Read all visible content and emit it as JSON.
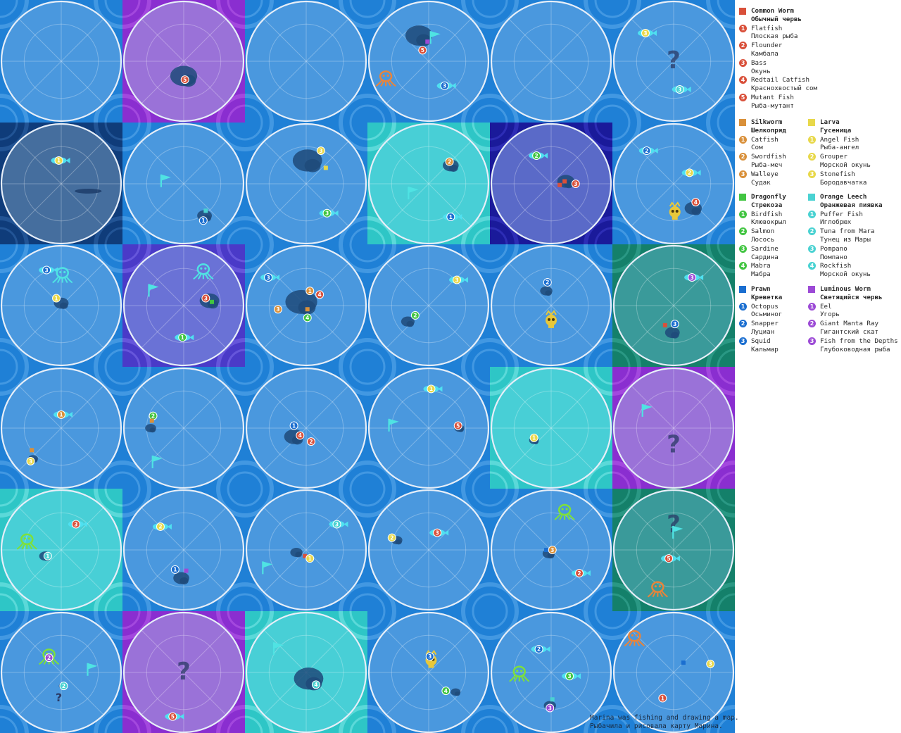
{
  "caption": {
    "line1": "Marina was fishing and drawing a map.",
    "line2": "Рыбачила и рисовала карту Марина."
  },
  "colors": {
    "ocean": "#4a98de",
    "border": "#1f7fd6",
    "common_worm": "#d9503a",
    "silkworm": "#d9903a",
    "larva": "#e8d84a",
    "dragonfly": "#42c542",
    "orange_leech": "#4ad2d2",
    "prawn": "#1a6ed0",
    "luminous_worm": "#9c4ad6",
    "flag": "#4fe3e3",
    "fish_body": "#4fe0f0"
  },
  "legend": [
    {
      "key": "common_worm",
      "name_en": "Common Worm",
      "name_ru": "Обычный червь",
      "color": "#d9503a",
      "fish": [
        [
          "Flatfish",
          "Плоская рыба"
        ],
        [
          "Flounder",
          "Камбала"
        ],
        [
          "Bass",
          "Окунь"
        ],
        [
          "Redtail Catfish",
          "Краснохвостый сом"
        ],
        [
          "Mutant Fish",
          "Рыба-мутант"
        ]
      ]
    },
    {
      "key": "silkworm",
      "name_en": "Silkworm",
      "name_ru": "Шелкопряд",
      "color": "#d9903a",
      "fish": [
        [
          "Catfish",
          "Сом"
        ],
        [
          "Swordfish",
          "Рыба-меч"
        ],
        [
          "Walleye",
          "Судак"
        ]
      ]
    },
    {
      "key": "larva",
      "name_en": "Larva",
      "name_ru": "Гусеница",
      "color": "#e8d84a",
      "fish": [
        [
          "Angel Fish",
          "Рыба-ангел"
        ],
        [
          "Grouper",
          "Морской окунь"
        ],
        [
          "Stonefish",
          "Бородавчатка"
        ]
      ]
    },
    {
      "key": "dragonfly",
      "name_en": "Dragonfly",
      "name_ru": "Стрекоза",
      "color": "#42c542",
      "fish": [
        [
          "Birdfish",
          "Клювокрыл"
        ],
        [
          "Salmon",
          "Лосось"
        ],
        [
          "Sardine",
          "Сардина"
        ],
        [
          "Mabra",
          "Мабра"
        ]
      ]
    },
    {
      "key": "orange_leech",
      "name_en": "Orange Leech",
      "name_ru": "Оранжевая пиявка",
      "color": "#4ad2d2",
      "fish": [
        [
          "Puffer Fish",
          "Иглобрюх"
        ],
        [
          "Tuna from Mara",
          "Тунец из Мары"
        ],
        [
          "Pompano",
          "Помпано"
        ],
        [
          "Rockfish",
          "Морской окунь"
        ]
      ]
    },
    {
      "key": "prawn",
      "name_en": "Prawn",
      "name_ru": "Креветка",
      "color": "#1a6ed0",
      "fish": [
        [
          "Octopus",
          "Осьминог"
        ],
        [
          "Snapper",
          "Луциан"
        ],
        [
          "Squid",
          "Кальмар"
        ]
      ]
    },
    {
      "key": "luminous_worm",
      "name_en": "Luminous Worm",
      "name_ru": "Светящийся червь",
      "color": "#9c4ad6",
      "fish": [
        [
          "Eel",
          "Угорь"
        ],
        [
          "Giant Manta Ray",
          "Гигантский скат"
        ],
        [
          "Fish from the Depths",
          "Глубоководная рыба"
        ]
      ]
    }
  ],
  "tiles": [
    {
      "bg": "ocean",
      "items": []
    },
    {
      "bg": "purple",
      "items": [
        [
          "island",
          0.5,
          0.62,
          0.22
        ],
        [
          "num",
          0.51,
          0.65,
          "common_worm",
          "5"
        ]
      ]
    },
    {
      "bg": "ocean",
      "items": []
    },
    {
      "bg": "ocean",
      "items": [
        [
          "island",
          0.42,
          0.29,
          0.22
        ],
        [
          "flag",
          0.55,
          0.3
        ],
        [
          "sq",
          0.49,
          0.34,
          "luminous_worm"
        ],
        [
          "num",
          0.45,
          0.41,
          "common_worm",
          "5"
        ],
        [
          "octo",
          0.15,
          0.64,
          "#e8843a"
        ],
        [
          "fish",
          0.63,
          0.7,
          "prawn",
          "3"
        ]
      ]
    },
    {
      "bg": "ocean",
      "items": []
    },
    {
      "bg": "ocean",
      "items": [
        [
          "fish",
          0.27,
          0.27,
          "larva",
          "3"
        ],
        [
          "q",
          0.5,
          0.5
        ],
        [
          "fish",
          0.55,
          0.73,
          "orange_leech",
          "3"
        ]
      ]
    },
    {
      "bg": "navy",
      "items": [
        [
          "fish",
          0.48,
          0.31,
          "larva",
          "1"
        ],
        [
          "smudge",
          0.72,
          0.56,
          0.22
        ]
      ]
    },
    {
      "bg": "ocean",
      "items": [
        [
          "flag",
          0.35,
          0.47
        ],
        [
          "island",
          0.67,
          0.76,
          0.12
        ],
        [
          "sq",
          0.68,
          0.72,
          "orange_leech"
        ],
        [
          "num",
          0.66,
          0.8,
          "prawn",
          "1"
        ]
      ]
    },
    {
      "bg": "ocean",
      "items": [
        [
          "island",
          0.51,
          0.31,
          0.24
        ],
        [
          "num",
          0.62,
          0.23,
          "larva",
          "3"
        ],
        [
          "sq",
          0.66,
          0.37,
          "larva"
        ],
        [
          "fish",
          0.67,
          0.74,
          "dragonfly",
          "3"
        ]
      ]
    },
    {
      "bg": "teal",
      "items": [
        [
          "island",
          0.68,
          0.35,
          0.13
        ],
        [
          "num",
          0.67,
          0.32,
          "silkworm",
          "2"
        ],
        [
          "flag",
          0.37,
          0.57
        ],
        [
          "fish",
          0.68,
          0.77,
          "prawn",
          "1"
        ]
      ]
    },
    {
      "bg": "indigo",
      "items": [
        [
          "fish",
          0.38,
          0.27,
          "dragonfly",
          "2"
        ],
        [
          "island",
          0.62,
          0.48,
          0.14
        ],
        [
          "sq",
          0.57,
          0.51,
          "common_worm"
        ],
        [
          "sq",
          0.61,
          0.48,
          "common_worm"
        ],
        [
          "num",
          0.7,
          0.5,
          "common_worm",
          "3"
        ]
      ]
    },
    {
      "bg": "ocean",
      "items": [
        [
          "fish",
          0.28,
          0.23,
          "prawn",
          "2"
        ],
        [
          "fish",
          0.63,
          0.41,
          "larva",
          "2"
        ],
        [
          "island",
          0.66,
          0.7,
          0.14
        ],
        [
          "num",
          0.68,
          0.65,
          "common_worm",
          "4"
        ],
        [
          "skull",
          0.51,
          0.73,
          "#e8c83a"
        ]
      ]
    },
    {
      "bg": "ocean",
      "items": [
        [
          "fish",
          0.38,
          0.21,
          "prawn",
          "3"
        ],
        [
          "octo",
          0.51,
          0.25,
          "#4fe3e3"
        ],
        [
          "island",
          0.5,
          0.48,
          0.12
        ],
        [
          "num",
          0.46,
          0.44,
          "larva",
          "1"
        ]
      ]
    },
    {
      "bg": "violet",
      "items": [
        [
          "flag",
          0.25,
          0.37
        ],
        [
          "octo",
          0.66,
          0.22,
          "#4fe3e3"
        ],
        [
          "island",
          0.71,
          0.46,
          0.16
        ],
        [
          "num",
          0.68,
          0.44,
          "common_worm",
          "3"
        ],
        [
          "sq",
          0.73,
          0.47,
          "dragonfly"
        ],
        [
          "fish",
          0.49,
          0.76,
          "dragonfly",
          "1"
        ]
      ]
    },
    {
      "bg": "ocean",
      "items": [
        [
          "fish",
          0.19,
          0.27,
          "prawn",
          "3"
        ],
        [
          "island",
          0.46,
          0.47,
          0.26
        ],
        [
          "num",
          0.53,
          0.38,
          "silkworm",
          "1"
        ],
        [
          "num",
          0.61,
          0.41,
          "common_worm",
          "4"
        ],
        [
          "num",
          0.27,
          0.53,
          "silkworm",
          "3"
        ],
        [
          "sq",
          0.51,
          0.53,
          "silkworm"
        ],
        [
          "num",
          0.51,
          0.6,
          "dragonfly",
          "4"
        ]
      ]
    },
    {
      "bg": "ocean",
      "items": [
        [
          "fish",
          0.73,
          0.29,
          "larva",
          "3"
        ],
        [
          "island",
          0.33,
          0.63,
          0.11
        ],
        [
          "num",
          0.39,
          0.58,
          "dragonfly",
          "2"
        ]
      ]
    },
    {
      "bg": "ocean",
      "items": [
        [
          "island",
          0.46,
          0.38,
          0.1
        ],
        [
          "num",
          0.47,
          0.31,
          "prawn",
          "2"
        ],
        [
          "skull",
          0.5,
          0.62,
          "#e8c83a"
        ]
      ]
    },
    {
      "bg": "green",
      "items": [
        [
          "fish",
          0.65,
          0.27,
          "luminous_worm",
          "3"
        ],
        [
          "island",
          0.49,
          0.72,
          0.12
        ],
        [
          "num",
          0.51,
          0.65,
          "prawn",
          "3"
        ],
        [
          "sq",
          0.43,
          0.66,
          "common_worm"
        ]
      ]
    },
    {
      "bg": "ocean",
      "items": [
        [
          "fish",
          0.5,
          0.39,
          "silkworm",
          "1"
        ],
        [
          "island",
          0.27,
          0.75,
          0.08
        ],
        [
          "sq",
          0.26,
          0.68,
          "silkworm"
        ],
        [
          "num",
          0.25,
          0.77,
          "larva",
          "3"
        ]
      ]
    },
    {
      "bg": "ocean",
      "items": [
        [
          "island",
          0.23,
          0.5,
          0.09
        ],
        [
          "num",
          0.25,
          0.4,
          "dragonfly",
          "2"
        ],
        [
          "sq",
          0.24,
          0.44,
          "silkworm"
        ],
        [
          "flag",
          0.28,
          0.77
        ]
      ]
    },
    {
      "bg": "ocean",
      "items": [
        [
          "island",
          0.4,
          0.57,
          0.16
        ],
        [
          "num",
          0.4,
          0.48,
          "prawn",
          "1"
        ],
        [
          "num",
          0.45,
          0.56,
          "common_worm",
          "4"
        ],
        [
          "num",
          0.54,
          0.61,
          "common_worm",
          "2"
        ]
      ]
    },
    {
      "bg": "ocean",
      "items": [
        [
          "fish",
          0.52,
          0.18,
          "larva",
          "1"
        ],
        [
          "flag",
          0.21,
          0.47
        ],
        [
          "island",
          0.75,
          0.5,
          0.08
        ],
        [
          "num",
          0.74,
          0.48,
          "common_worm",
          "5"
        ]
      ]
    },
    {
      "bg": "teal",
      "items": [
        [
          "island",
          0.36,
          0.6,
          0.08
        ],
        [
          "num",
          0.36,
          0.58,
          "larva",
          "1"
        ]
      ]
    },
    {
      "bg": "purple",
      "items": [
        [
          "flag",
          0.28,
          0.35
        ],
        [
          "q",
          0.5,
          0.64
        ]
      ]
    },
    {
      "bg": "teal",
      "items": [
        [
          "fish",
          0.62,
          0.29,
          "common_worm",
          "3"
        ],
        [
          "octo",
          0.22,
          0.43,
          "#7ee03a"
        ],
        [
          "island",
          0.37,
          0.55,
          0.1
        ],
        [
          "num",
          0.39,
          0.55,
          "orange_leech",
          "1"
        ]
      ]
    },
    {
      "bg": "ocean",
      "items": [
        [
          "fish",
          0.31,
          0.31,
          "larva",
          "2"
        ],
        [
          "island",
          0.48,
          0.73,
          0.13
        ],
        [
          "num",
          0.43,
          0.66,
          "prawn",
          "1"
        ],
        [
          "sq",
          0.52,
          0.67,
          "luminous_worm"
        ]
      ]
    },
    {
      "bg": "ocean",
      "items": [
        [
          "fish",
          0.75,
          0.29,
          "orange_leech",
          "3"
        ],
        [
          "flag",
          0.18,
          0.64
        ],
        [
          "island",
          0.42,
          0.52,
          0.1
        ],
        [
          "sq",
          0.49,
          0.55,
          "common_worm"
        ],
        [
          "num",
          0.53,
          0.57,
          "larva",
          "1"
        ]
      ]
    },
    {
      "bg": "ocean",
      "items": [
        [
          "island",
          0.24,
          0.42,
          0.09
        ],
        [
          "num",
          0.2,
          0.4,
          "larva",
          "2"
        ],
        [
          "fish",
          0.57,
          0.36,
          "common_worm",
          "3"
        ]
      ]
    },
    {
      "bg": "ocean",
      "items": [
        [
          "octo",
          0.61,
          0.19,
          "#7ee03a"
        ],
        [
          "island",
          0.48,
          0.53,
          0.1
        ],
        [
          "sq",
          0.46,
          0.5,
          "prawn"
        ],
        [
          "num",
          0.51,
          0.5,
          "silkworm",
          "3"
        ],
        [
          "fish",
          0.73,
          0.69,
          "common_worm",
          "2"
        ]
      ]
    },
    {
      "bg": "green",
      "items": [
        [
          "q",
          0.5,
          0.3
        ],
        [
          "flag",
          0.53,
          0.35
        ],
        [
          "fish",
          0.46,
          0.57,
          "common_worm",
          "5"
        ],
        [
          "octo",
          0.37,
          0.82,
          "#e8843a"
        ]
      ]
    },
    {
      "bg": "ocean",
      "items": [
        [
          "octo",
          0.4,
          0.37,
          "#7ee03a"
        ],
        [
          "num",
          0.4,
          0.38,
          "luminous_worm",
          "2"
        ],
        [
          "flag",
          0.75,
          0.47
        ],
        [
          "island",
          0.51,
          0.61,
          0.06
        ],
        [
          "num",
          0.52,
          0.61,
          "orange_leech",
          "2"
        ],
        [
          "qs",
          0.48,
          0.7
        ]
      ]
    },
    {
      "bg": "purple",
      "items": [
        [
          "q",
          0.5,
          0.5
        ],
        [
          "fish",
          0.41,
          0.86,
          "common_worm",
          "5"
        ]
      ]
    },
    {
      "bg": "teal",
      "items": [
        [
          "flag",
          0.27,
          0.3
        ],
        [
          "island",
          0.52,
          0.55,
          0.24
        ],
        [
          "num",
          0.58,
          0.6,
          "orange_leech",
          "4"
        ]
      ]
    },
    {
      "bg": "ocean",
      "items": [
        [
          "skull",
          0.52,
          0.4,
          "#e8c83a"
        ],
        [
          "num",
          0.51,
          0.37,
          "prawn",
          "3"
        ],
        [
          "island",
          0.72,
          0.66,
          0.08
        ],
        [
          "num",
          0.64,
          0.65,
          "dragonfly",
          "4"
        ]
      ]
    },
    {
      "bg": "ocean",
      "items": [
        [
          "fish",
          0.4,
          0.31,
          "prawn",
          "2"
        ],
        [
          "octo",
          0.24,
          0.51,
          "#7ee03a"
        ],
        [
          "fish",
          0.65,
          0.53,
          "dragonfly",
          "3"
        ],
        [
          "island",
          0.49,
          0.77,
          0.1
        ],
        [
          "sq",
          0.51,
          0.72,
          "orange_leech"
        ],
        [
          "num",
          0.49,
          0.79,
          "luminous_worm",
          "3"
        ]
      ]
    },
    {
      "bg": "ocean",
      "items": [
        [
          "octo",
          0.18,
          0.22,
          "#e8843a"
        ],
        [
          "sq",
          0.58,
          0.42,
          "prawn"
        ],
        [
          "num",
          0.8,
          0.43,
          "larva",
          "3"
        ],
        [
          "num",
          0.41,
          0.71,
          "common_worm",
          "1"
        ]
      ]
    }
  ]
}
